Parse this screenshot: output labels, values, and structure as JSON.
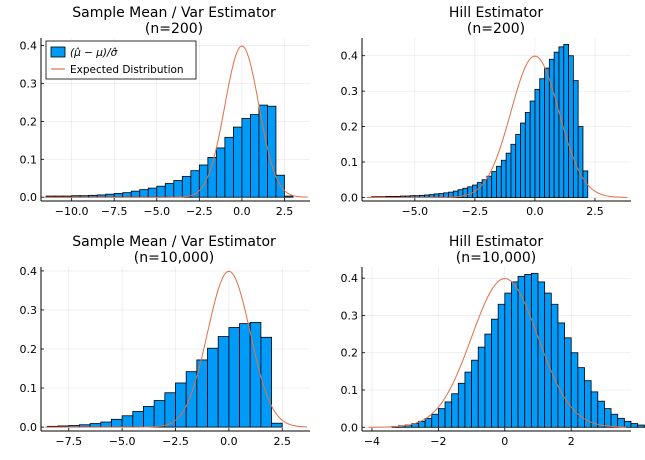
{
  "figure": {
    "background": "#ffffff",
    "bar_color": "#009af9",
    "curve_color": "#e26f46"
  },
  "chart_data": [
    {
      "type": "bar",
      "title": "Sample Mean / Var Estimator",
      "subtitle": "(n=200)",
      "xlim": [
        -11.8,
        4.0
      ],
      "ylim": [
        -0.01,
        0.42
      ],
      "xticks": [
        -10.0,
        -7.5,
        -5.0,
        -2.5,
        0.0,
        2.5
      ],
      "xtick_labels": [
        "−10.0",
        "−7.5",
        "−5.0",
        "−2.5",
        "0.0",
        "2.5"
      ],
      "yticks": [
        0.0,
        0.1,
        0.2,
        0.3,
        0.4
      ],
      "ytick_labels": [
        "0.0",
        "0.1",
        "0.2",
        "0.3",
        "0.4"
      ],
      "bin_start": -11.5,
      "bin_width": 0.5,
      "values": [
        0.003,
        0.003,
        0.003,
        0.004,
        0.004,
        0.005,
        0.006,
        0.008,
        0.01,
        0.012,
        0.016,
        0.02,
        0.024,
        0.029,
        0.036,
        0.044,
        0.055,
        0.07,
        0.085,
        0.105,
        0.13,
        0.158,
        0.185,
        0.208,
        0.218,
        0.243,
        0.24,
        0.058,
        0.003
      ],
      "curve": {
        "type": "normal",
        "mean": 0,
        "sd": 1
      },
      "legend": {
        "position": "top-left",
        "entries": [
          "(μ̂ − μ)/σ̂",
          "Expected Distribution"
        ]
      }
    },
    {
      "type": "bar",
      "title": "Hill Estimator",
      "subtitle": "(n=200)",
      "xlim": [
        -7.2,
        4.0
      ],
      "ylim": [
        -0.01,
        0.45
      ],
      "xticks": [
        -5.0,
        -2.5,
        0.0,
        2.5
      ],
      "xtick_labels": [
        "−5.0",
        "−2.5",
        "0.0",
        "2.5"
      ],
      "yticks": [
        0.0,
        0.1,
        0.2,
        0.3,
        0.4
      ],
      "ytick_labels": [
        "0.0",
        "0.1",
        "0.2",
        "0.3",
        "0.4"
      ],
      "bin_start": -6.8,
      "bin_width": 0.2,
      "values": [
        0.002,
        0.002,
        0.002,
        0.003,
        0.003,
        0.003,
        0.004,
        0.004,
        0.005,
        0.005,
        0.006,
        0.007,
        0.008,
        0.01,
        0.011,
        0.013,
        0.015,
        0.018,
        0.022,
        0.026,
        0.03,
        0.035,
        0.042,
        0.05,
        0.06,
        0.073,
        0.088,
        0.105,
        0.125,
        0.15,
        0.178,
        0.21,
        0.24,
        0.272,
        0.305,
        0.335,
        0.365,
        0.39,
        0.41,
        0.425,
        0.432,
        0.4,
        0.33,
        0.2,
        0.075
      ],
      "curve": {
        "type": "normal",
        "mean": 0,
        "sd": 1
      }
    },
    {
      "type": "bar",
      "title": "Sample Mean / Var Estimator",
      "subtitle": "(n=10,000)",
      "xlim": [
        -8.8,
        3.8
      ],
      "ylim": [
        -0.01,
        0.41
      ],
      "xticks": [
        -7.5,
        -5.0,
        -2.5,
        0.0,
        2.5
      ],
      "xtick_labels": [
        "−7.5",
        "−5.0",
        "−2.5",
        "0.0",
        "2.5"
      ],
      "yticks": [
        0.0,
        0.1,
        0.2,
        0.3,
        0.4
      ],
      "ytick_labels": [
        "0.0",
        "0.1",
        "0.2",
        "0.3",
        "0.4"
      ],
      "bin_start": -8.5,
      "bin_width": 0.5,
      "values": [
        0.002,
        0.003,
        0.004,
        0.006,
        0.009,
        0.013,
        0.02,
        0.029,
        0.04,
        0.053,
        0.068,
        0.088,
        0.113,
        0.142,
        0.172,
        0.202,
        0.232,
        0.255,
        0.265,
        0.268,
        0.23,
        0.01
      ],
      "curve": {
        "type": "normal",
        "mean": 0,
        "sd": 1
      }
    },
    {
      "type": "bar",
      "title": "Hill Estimator",
      "subtitle": "(n=10,000)",
      "xlim": [
        -4.3,
        3.8
      ],
      "ylim": [
        -0.01,
        0.43
      ],
      "xticks": [
        -4,
        -2,
        0,
        2
      ],
      "xtick_labels": [
        "−4",
        "−2",
        "0",
        "2"
      ],
      "yticks": [
        0.0,
        0.1,
        0.2,
        0.3,
        0.4
      ],
      "ytick_labels": [
        "0.0",
        "0.1",
        "0.2",
        "0.3",
        "0.4"
      ],
      "bin_start": -3.4,
      "bin_width": 0.2,
      "values": [
        0.002,
        0.004,
        0.006,
        0.01,
        0.016,
        0.024,
        0.035,
        0.05,
        0.068,
        0.09,
        0.118,
        0.148,
        0.18,
        0.215,
        0.25,
        0.29,
        0.33,
        0.36,
        0.39,
        0.405,
        0.41,
        0.413,
        0.39,
        0.36,
        0.33,
        0.28,
        0.24,
        0.2,
        0.16,
        0.125,
        0.095,
        0.07,
        0.05,
        0.035,
        0.024,
        0.016,
        0.01,
        0.006,
        0.003,
        0.001
      ],
      "curve": {
        "type": "normal",
        "mean": 0,
        "sd": 1
      }
    }
  ]
}
